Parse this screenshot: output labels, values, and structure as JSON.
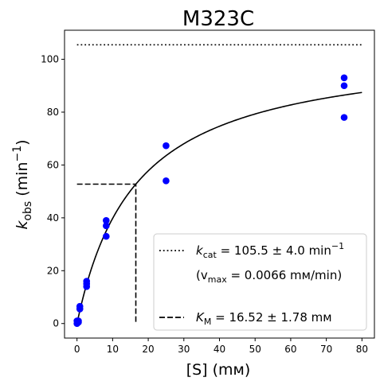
{
  "chart_data": {
    "type": "scatter",
    "title": "M323C",
    "xlabel": "[S] (mм)",
    "ylabel": {
      "base": "k",
      "sub": "obs",
      "unit_open": " (min",
      "sup": "−1",
      "unit_close": ")"
    },
    "xlim": [
      -3.5,
      83.5
    ],
    "ylim": [
      -5.5,
      111
    ],
    "xticks": [
      0,
      10,
      20,
      30,
      40,
      50,
      60,
      70,
      80
    ],
    "yticks": [
      0,
      20,
      40,
      60,
      80,
      100
    ],
    "grid": false,
    "legend_position": "lower-right",
    "colors": {
      "points": "#0000ff",
      "lines": "#000000"
    },
    "series": [
      {
        "type": "scatter",
        "x": [
          0,
          0,
          0.4,
          0.4,
          0.8,
          0.8,
          2.7,
          2.7,
          2.7,
          8.2,
          8.2,
          8.2,
          25,
          25,
          75,
          75,
          75
        ],
        "y": [
          0,
          1,
          0.5,
          1,
          5.5,
          6.5,
          14,
          15,
          16,
          33,
          37,
          39,
          54,
          67.3,
          78,
          90,
          93
        ]
      },
      {
        "type": "line",
        "style": "solid",
        "function": "michaelis-menten",
        "kcat": 105.5,
        "Km": 16.52,
        "x_range": [
          0,
          80
        ]
      },
      {
        "type": "line",
        "style": "dotted",
        "x": [
          0,
          80
        ],
        "y": [
          105.5,
          105.5
        ]
      },
      {
        "type": "line",
        "style": "dashed",
        "x": [
          0,
          16.52,
          16.52
        ],
        "y": [
          52.75,
          52.75,
          0
        ]
      }
    ],
    "legend": {
      "entries": [
        {
          "style": "dotted",
          "base": "k",
          "sub": "cat",
          "text": " = 105.5 ± 4.0 min",
          "sup": "−1"
        },
        {
          "style": "none",
          "open": "(v",
          "sub": "max",
          "text": " = 0.0066 mм/min)"
        },
        {
          "style": "dashed",
          "base": "K",
          "sub": "M",
          "text": " = 16.52 ± 1.78 mм"
        }
      ]
    }
  }
}
